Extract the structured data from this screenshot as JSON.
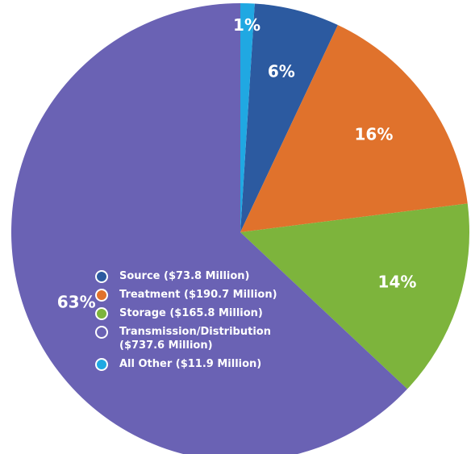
{
  "chart_data": {
    "type": "pie",
    "categories": [
      "Source ($73.8 Million)",
      "Treatment ($190.7 Million)",
      "Storage ($165.8  Million)",
      "Transmission/Distribution ($737.6  Million)",
      "All Other ($11.9 Million)"
    ],
    "values": [
      6,
      16,
      14,
      63,
      1
    ],
    "value_labels": [
      "6%",
      "16%",
      "14%",
      "63%",
      "1%"
    ],
    "colors": [
      "#2c5aa0",
      "#e0722c",
      "#7db43c",
      "#6a62b4",
      "#20a8e2"
    ]
  }
}
